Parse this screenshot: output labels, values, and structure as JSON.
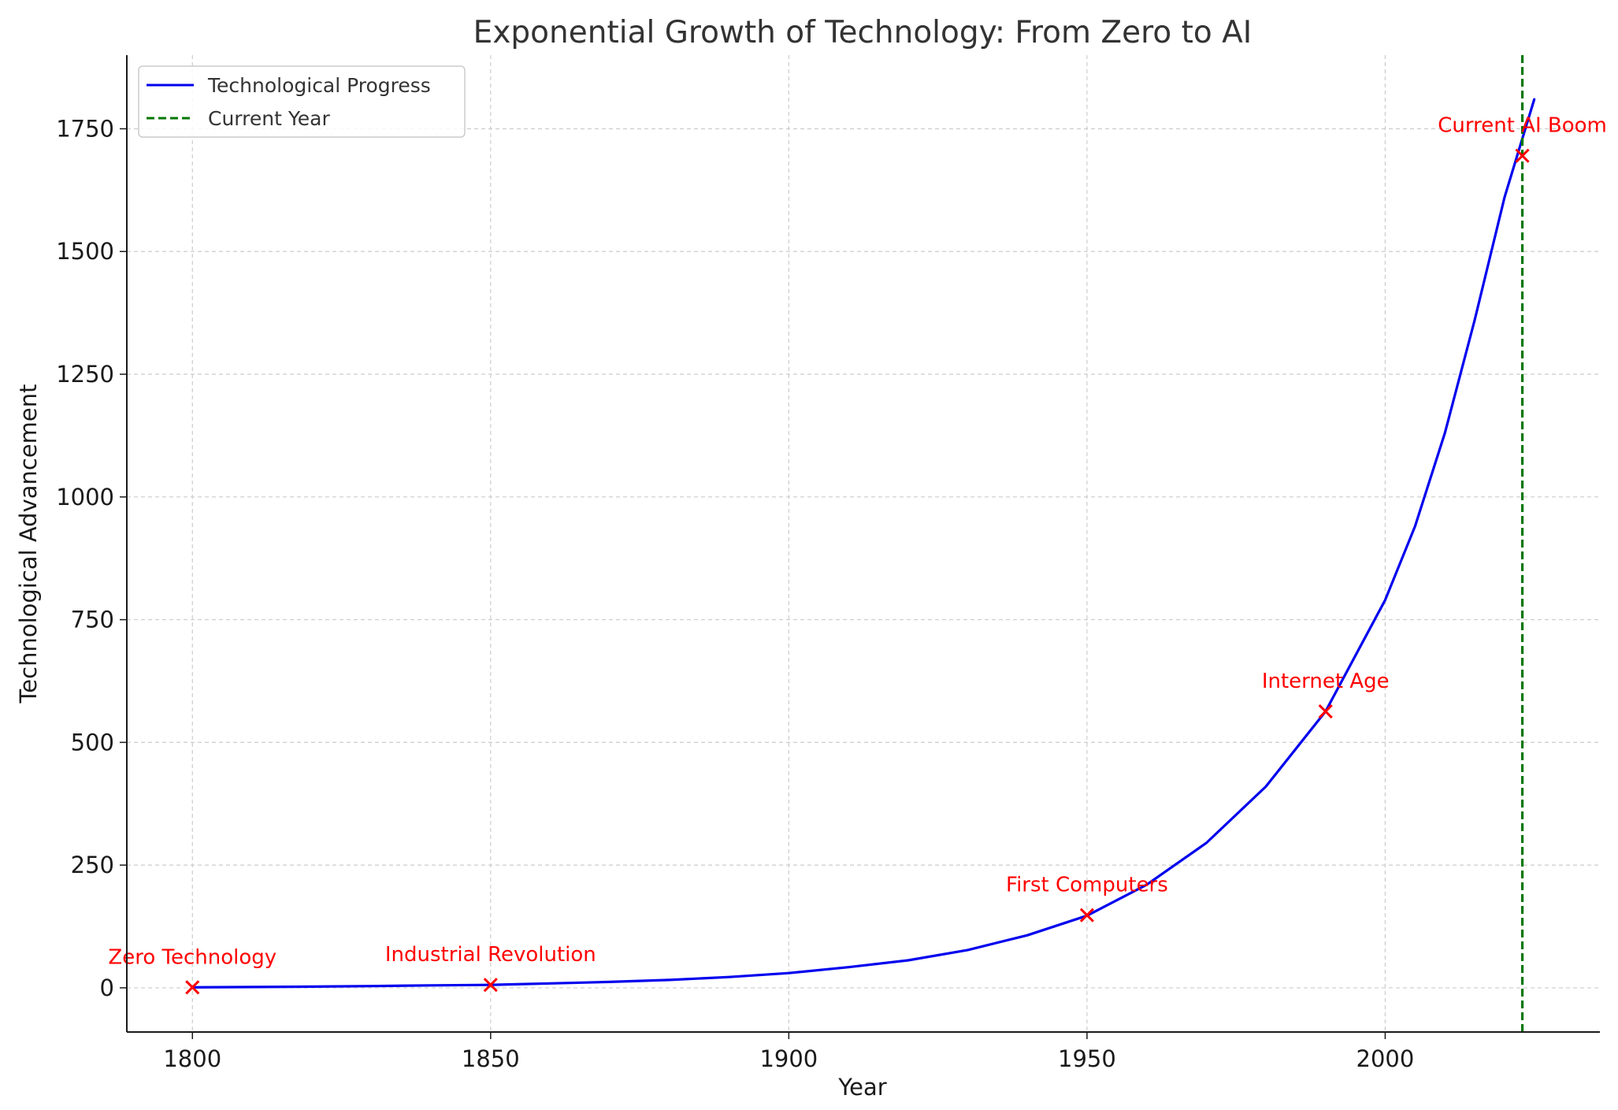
{
  "chart_data": {
    "type": "line",
    "title": "Exponential Growth of Technology: From Zero to AI",
    "xlabel": "Year",
    "ylabel": "Technological Advancement",
    "xlim": [
      1789,
      2036
    ],
    "ylim": [
      -90,
      1900
    ],
    "xticks": [
      1800,
      1850,
      1900,
      1950,
      2000
    ],
    "yticks": [
      0,
      250,
      500,
      750,
      1000,
      1250,
      1500,
      1750
    ],
    "grid": true,
    "legend": "top-left",
    "series": [
      {
        "name": "Technological Progress",
        "style": "solid",
        "color": "#0000ee",
        "x": [
          1800,
          1810,
          1820,
          1830,
          1840,
          1850,
          1860,
          1870,
          1880,
          1890,
          1900,
          1910,
          1920,
          1930,
          1940,
          1950,
          1960,
          1970,
          1980,
          1990,
          2000,
          2005,
          2010,
          2015,
          2020,
          2025
        ],
        "y": [
          1,
          1.6,
          2.5,
          3.6,
          5,
          6,
          9,
          12,
          16,
          22,
          30,
          42,
          56,
          77,
          107,
          147,
          210,
          295,
          410,
          563,
          790,
          940,
          1130,
          1360,
          1610,
          1810
        ]
      },
      {
        "name": "Current Year",
        "style": "dashed",
        "color": "#007700",
        "x_value": 2023
      }
    ],
    "annotations": [
      {
        "label": "Zero Technology",
        "x": 1800,
        "y": 1
      },
      {
        "label": "Industrial Revolution",
        "x": 1850,
        "y": 6
      },
      {
        "label": "First Computers",
        "x": 1950,
        "y": 148
      },
      {
        "label": "Internet Age",
        "x": 1990,
        "y": 563
      },
      {
        "label": "Current AI Boom",
        "x": 2023,
        "y": 1695
      }
    ],
    "marker_color": "#ff0000"
  }
}
